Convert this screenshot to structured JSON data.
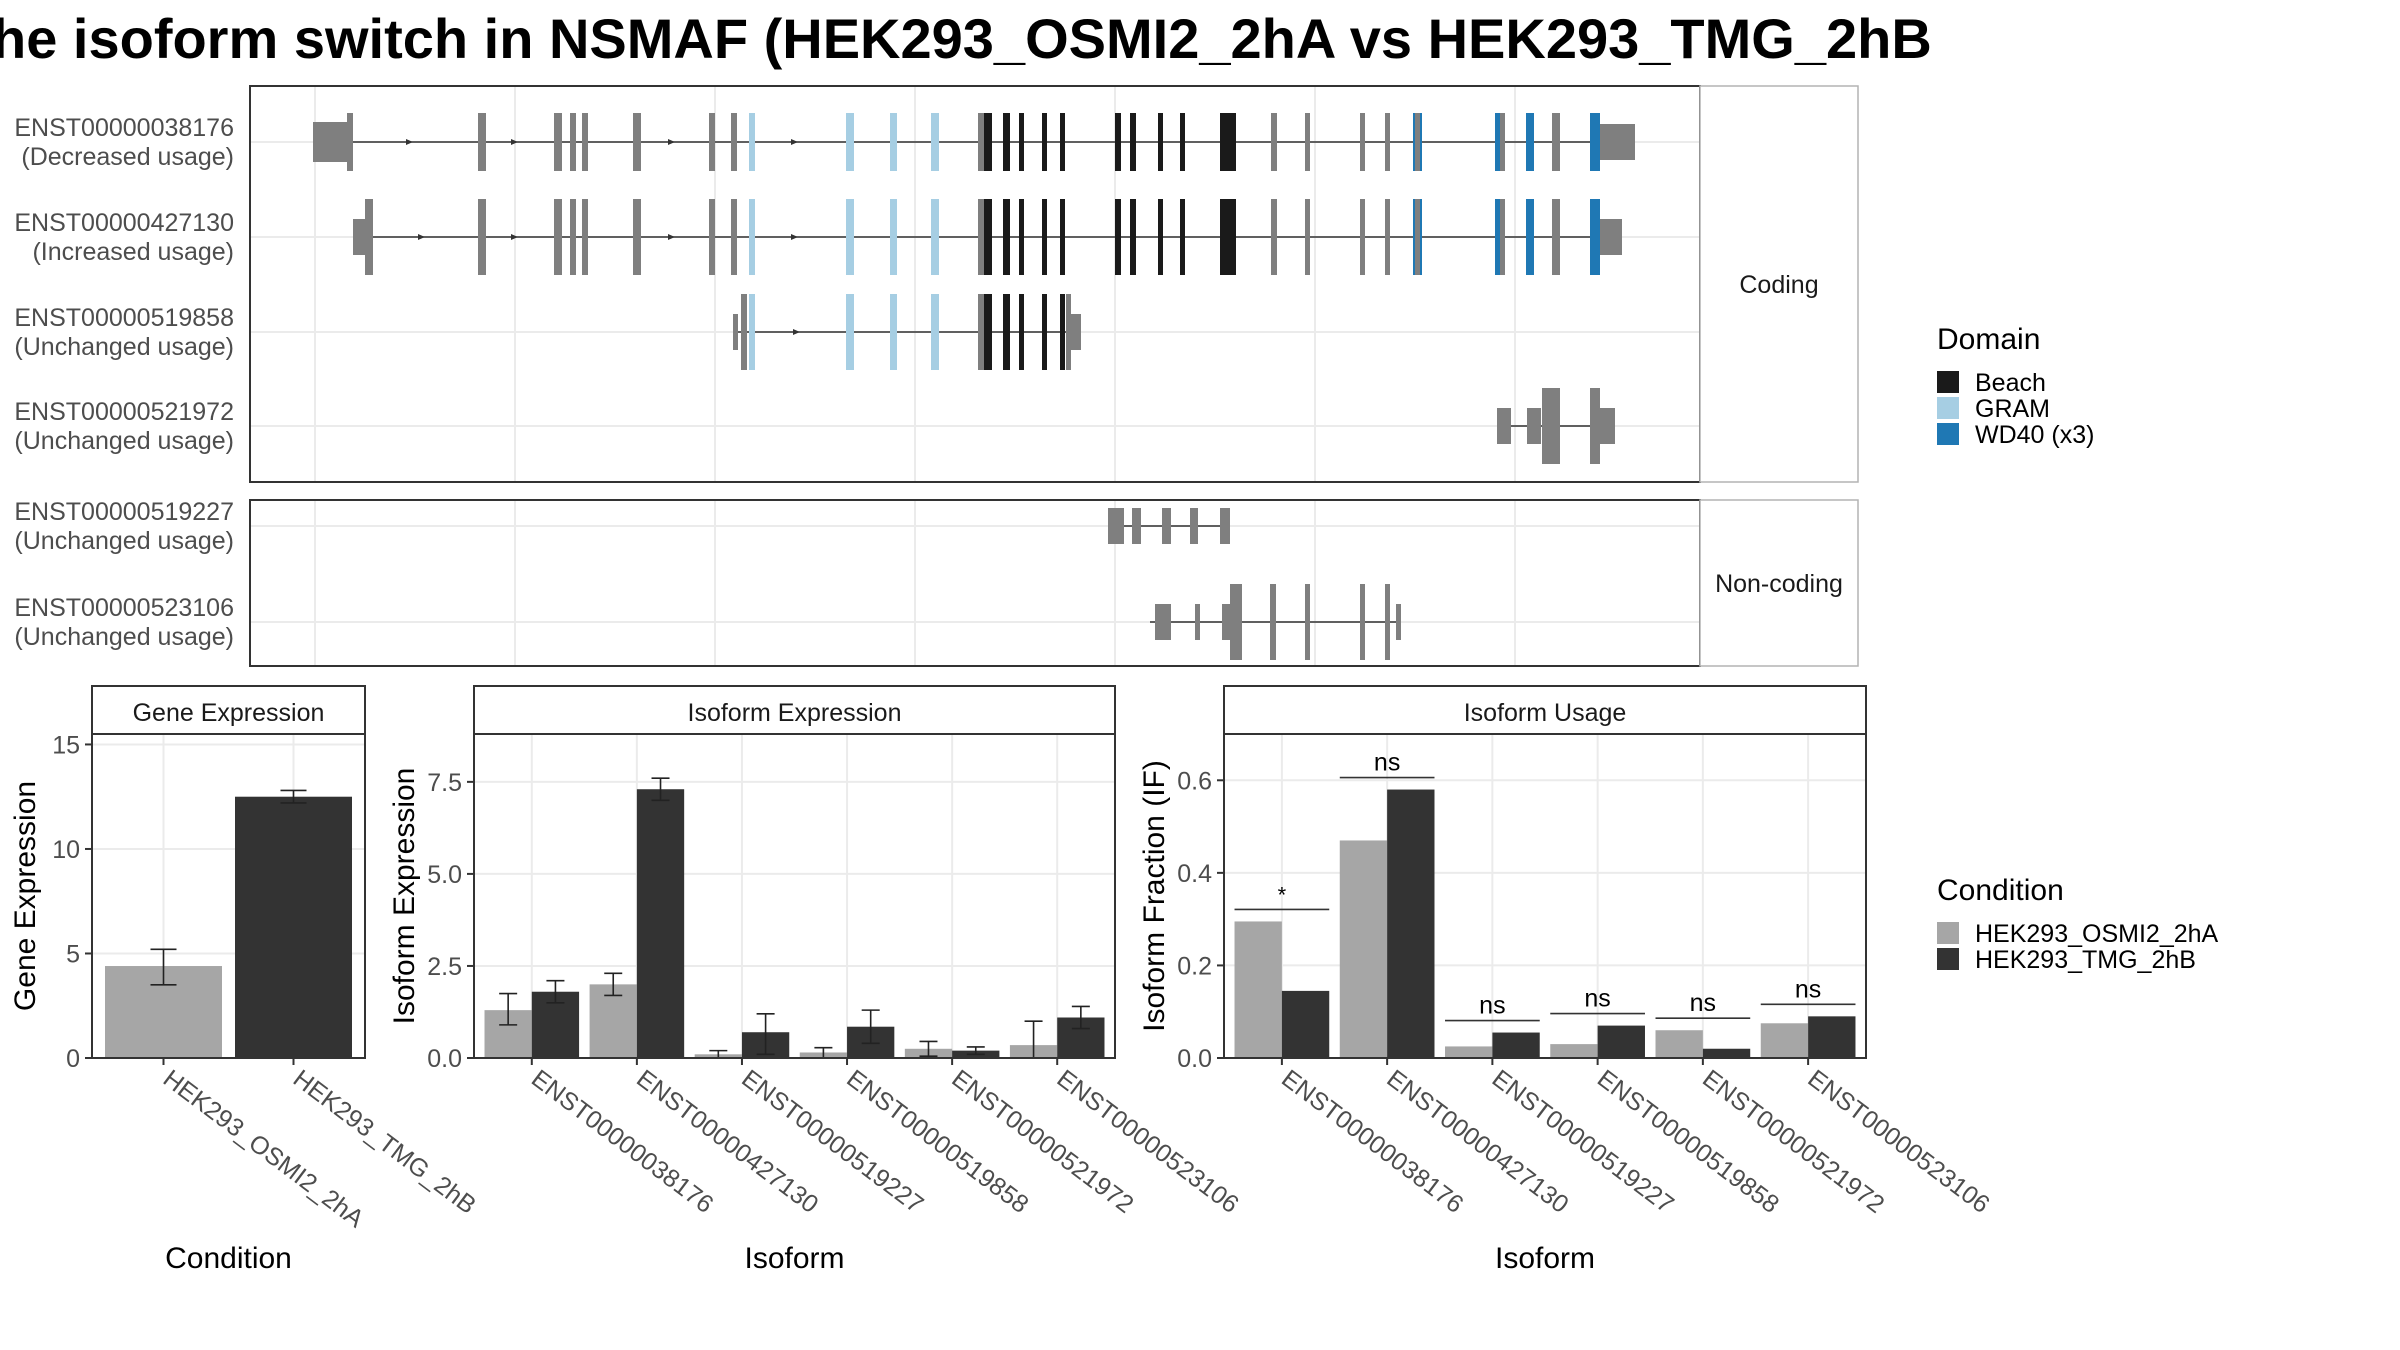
{
  "title": "he isoform switch in NSMAF (HEK293_OSMI2_2hA vs HEK293_TMG_2hB",
  "structure": {
    "facets": [
      "Coding",
      "Non-coding"
    ],
    "transcripts": [
      {
        "id": "ENST00000038176",
        "usage": "(Decreased usage)",
        "group": "Coding"
      },
      {
        "id": "ENST00000427130",
        "usage": "(Increased usage)",
        "group": "Coding"
      },
      {
        "id": "ENST00000519858",
        "usage": "(Unchanged usage)",
        "group": "Coding"
      },
      {
        "id": "ENST00000521972",
        "usage": "(Unchanged usage)",
        "group": "Coding"
      },
      {
        "id": "ENST00000519227",
        "usage": "(Unchanged usage)",
        "group": "Non-coding"
      },
      {
        "id": "ENST00000523106",
        "usage": "(Unchanged usage)",
        "group": "Non-coding"
      }
    ]
  },
  "legend_domain": {
    "title": "Domain",
    "items": [
      {
        "label": "Beach",
        "color": "#1a1a1a"
      },
      {
        "label": "GRAM",
        "color": "#a6cee3"
      },
      {
        "label": "WD40 (x3)",
        "color": "#1f78b4"
      }
    ]
  },
  "legend_condition": {
    "title": "Condition",
    "items": [
      {
        "label": "HEK293_OSMI2_2hA",
        "color": "#a6a6a6"
      },
      {
        "label": "HEK293_TMG_2hB",
        "color": "#333333"
      }
    ]
  },
  "chart_data": [
    {
      "type": "bar",
      "title": "Gene Expression",
      "xlabel": "Condition",
      "ylabel": "Gene Expression",
      "ylim": [
        0,
        15.5
      ],
      "yticks": [
        0,
        5,
        10,
        15
      ],
      "categories": [
        "HEK293_OSMI2_2hA",
        "HEK293_TMG_2hB"
      ],
      "values": [
        4.4,
        12.5
      ],
      "errors": [
        [
          3.5,
          5.2
        ],
        [
          12.2,
          12.8
        ]
      ]
    },
    {
      "type": "bar",
      "title": "Isoform Expression",
      "xlabel": "Isoform",
      "ylabel": "Isoform Expression",
      "ylim": [
        0,
        8.8
      ],
      "yticks": [
        "0.0",
        "2.5",
        "5.0",
        "7.5"
      ],
      "categories": [
        "ENST00000038176",
        "ENST00000427130",
        "ENST00000519227",
        "ENST00000519858",
        "ENST00000521972",
        "ENST00000523106"
      ],
      "series": [
        {
          "name": "HEK293_OSMI2_2hA",
          "values": [
            1.3,
            2.0,
            0.1,
            0.15,
            0.25,
            0.35
          ],
          "errors": [
            [
              0.9,
              1.75
            ],
            [
              1.7,
              2.3
            ],
            [
              0.0,
              0.2
            ],
            [
              0.0,
              0.28
            ],
            [
              0.05,
              0.45
            ],
            [
              0.0,
              1.0
            ]
          ]
        },
        {
          "name": "HEK293_TMG_2hB",
          "values": [
            1.8,
            7.3,
            0.7,
            0.85,
            0.2,
            1.1
          ],
          "errors": [
            [
              1.5,
              2.1
            ],
            [
              7.0,
              7.6
            ],
            [
              0.1,
              1.2
            ],
            [
              0.4,
              1.3
            ],
            [
              0.1,
              0.3
            ],
            [
              0.8,
              1.4
            ]
          ]
        }
      ]
    },
    {
      "type": "bar",
      "title": "Isoform Usage",
      "xlabel": "Isoform",
      "ylabel": "Isoform Fraction (IF)",
      "ylim": [
        0,
        0.7
      ],
      "yticks": [
        "0.0",
        "0.2",
        "0.4",
        "0.6"
      ],
      "categories": [
        "ENST00000038176",
        "ENST00000427130",
        "ENST00000519227",
        "ENST00000519858",
        "ENST00000521972",
        "ENST00000523106"
      ],
      "series": [
        {
          "name": "HEK293_OSMI2_2hA",
          "values": [
            0.295,
            0.47,
            0.025,
            0.03,
            0.06,
            0.075
          ]
        },
        {
          "name": "HEK293_TMG_2hB",
          "values": [
            0.145,
            0.58,
            0.055,
            0.07,
            0.02,
            0.09
          ]
        }
      ],
      "significance": [
        "*",
        "ns",
        "ns",
        "ns",
        "ns",
        "ns"
      ]
    }
  ]
}
